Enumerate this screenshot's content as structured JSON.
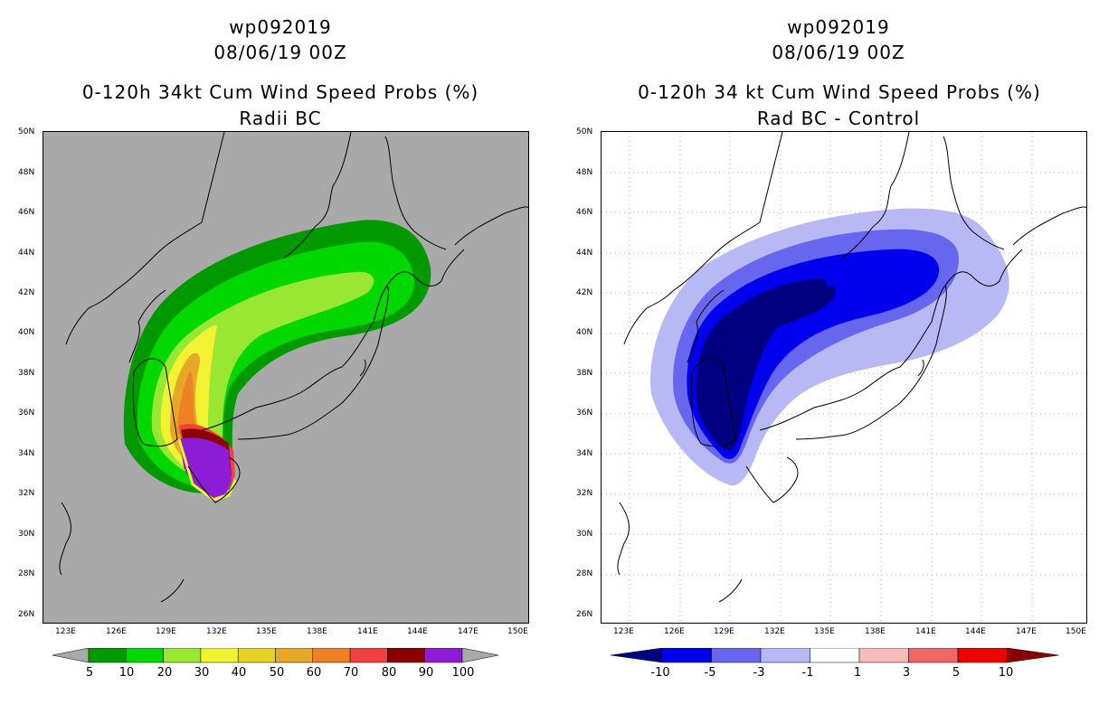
{
  "left": {
    "storm": "wp092019",
    "datetime": "08/06/19 00Z",
    "title": "0-120h 34kt Cum Wind Speed Probs (%)",
    "subtitle": "Radii BC",
    "background": "#a9a9a9",
    "colorbar": {
      "colors": [
        "#a9a9a9",
        "#009900",
        "#00d800",
        "#99e633",
        "#f2f233",
        "#e6d026",
        "#e6a826",
        "#ee8026",
        "#f24040",
        "#8b0000",
        "#8c1cd6",
        "#a9a9a9"
      ],
      "labels": [
        "5",
        "10",
        "20",
        "30",
        "40",
        "50",
        "60",
        "70",
        "80",
        "90",
        "100"
      ]
    }
  },
  "right": {
    "storm": "wp092019",
    "datetime": "08/06/19 00Z",
    "title": "0-120h 34 kt Cum Wind Speed Probs (%)",
    "subtitle": "Rad BC - Control",
    "background": "#ffffff",
    "colorbar": {
      "colors": [
        "#000080",
        "#0000ee",
        "#6666ee",
        "#b8b8f5",
        "#ffffff",
        "#f5bcbc",
        "#f06666",
        "#ee0000",
        "#8b0000"
      ],
      "labels": [
        "-10",
        "-5",
        "-3",
        "-1",
        "1",
        "3",
        "5",
        "10"
      ]
    }
  },
  "axes": {
    "lat_labels": [
      "50N",
      "48N",
      "46N",
      "44N",
      "42N",
      "40N",
      "38N",
      "36N",
      "34N",
      "32N",
      "30N",
      "28N",
      "26N"
    ],
    "lon_labels": [
      "123E",
      "126E",
      "129E",
      "132E",
      "135E",
      "138E",
      "141E",
      "144E",
      "147E",
      "150E"
    ]
  }
}
